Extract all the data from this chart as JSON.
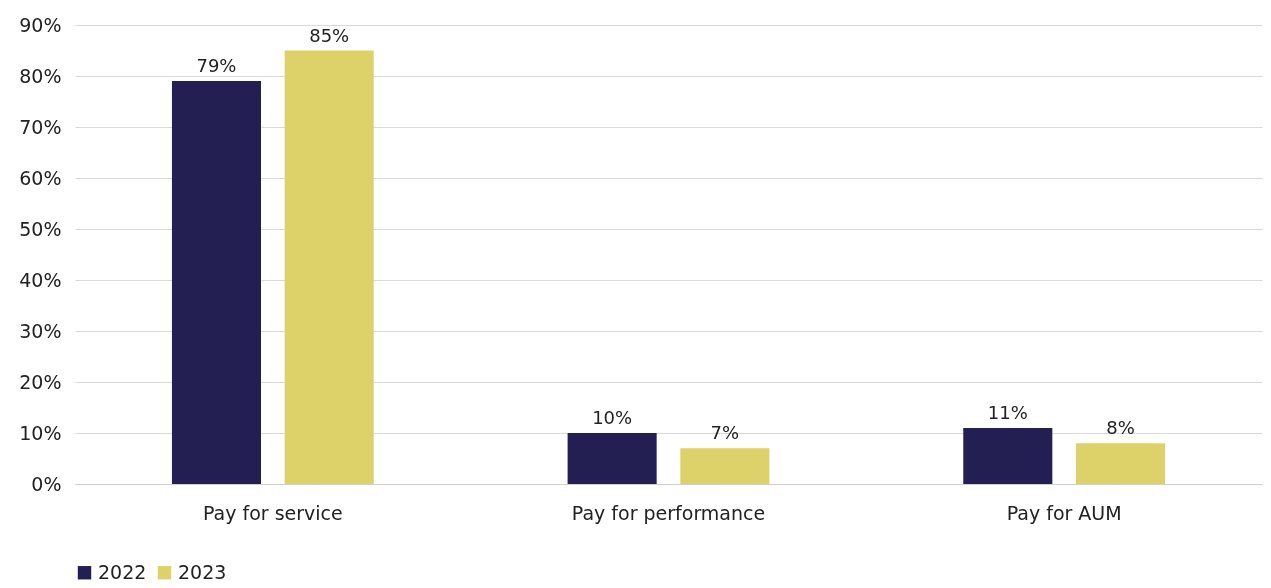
{
  "chart_data": {
    "type": "bar",
    "categories": [
      "Pay for service",
      "Pay for performance",
      "Pay for AUM"
    ],
    "series": [
      {
        "name": "2022",
        "color": "#231f52",
        "values": [
          79,
          10,
          11
        ],
        "value_labels": [
          "79%",
          "10%",
          "11%"
        ]
      },
      {
        "name": "2023",
        "color": "#ddd26a",
        "values": [
          85,
          7,
          8
        ],
        "value_labels": [
          "85%",
          "7%",
          "8%"
        ]
      }
    ],
    "ylim": [
      0,
      90
    ],
    "yticks": [
      {
        "value": 0,
        "label": "0%"
      },
      {
        "value": 10,
        "label": "10%"
      },
      {
        "value": 20,
        "label": "20%"
      },
      {
        "value": 30,
        "label": "30%"
      },
      {
        "value": 40,
        "label": "40%"
      },
      {
        "value": 50,
        "label": "50%"
      },
      {
        "value": 60,
        "label": "60%"
      },
      {
        "value": 70,
        "label": "70%"
      },
      {
        "value": 80,
        "label": "80%"
      },
      {
        "value": 90,
        "label": "90%"
      }
    ],
    "grid": "y",
    "legend": "bottom"
  }
}
